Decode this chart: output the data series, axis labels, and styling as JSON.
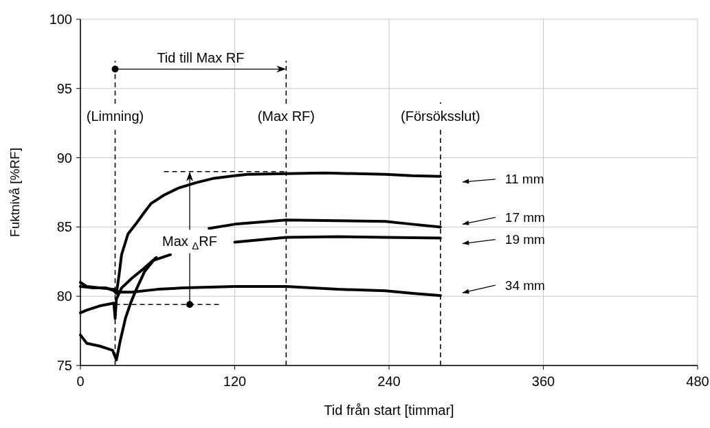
{
  "chart_data": {
    "type": "line",
    "xlabel": "Tid från start [timmar]",
    "ylabel": "Fuktnivå [%RF]",
    "xlim": [
      0,
      480
    ],
    "xticks": [
      0,
      120,
      240,
      360,
      480
    ],
    "ylim": [
      75,
      100
    ],
    "yticks": [
      75,
      80,
      85,
      90,
      95,
      100
    ],
    "grid": true,
    "legend": "right",
    "marker": "none",
    "line_style": "solid",
    "series": [
      {
        "name": "11 mm",
        "color": "#000000",
        "x": [
          0,
          10,
          20,
          26,
          28,
          30,
          32,
          37,
          43,
          50,
          55,
          65,
          76,
          90,
          103,
          120,
          130,
          160,
          190,
          237,
          258,
          280
        ],
        "values": [
          80.7,
          80.6,
          80.6,
          80.4,
          80.2,
          81.5,
          83.0,
          84.5,
          85.2,
          86.1,
          86.7,
          87.3,
          87.8,
          88.2,
          88.5,
          88.7,
          88.8,
          88.85,
          88.9,
          88.8,
          88.7,
          88.65
        ]
      },
      {
        "name": "17 mm",
        "color": "#000000",
        "x": [
          0,
          5,
          15,
          26,
          27,
          28,
          32,
          40,
          48,
          59,
          70,
          85,
          100,
          120,
          160,
          200,
          237,
          258,
          280
        ],
        "values": [
          78.8,
          79.0,
          79.3,
          79.5,
          78.4,
          79.8,
          80.6,
          81.3,
          81.9,
          82.8,
          null,
          null,
          84.9,
          85.2,
          85.5,
          85.45,
          85.4,
          85.2,
          85.0
        ]
      },
      {
        "name": "19 mm",
        "color": "#000000",
        "x": [
          0,
          5,
          15,
          25,
          28,
          31,
          35,
          39,
          43,
          50,
          57,
          70,
          90,
          120,
          160,
          200,
          237,
          280
        ],
        "values": [
          77.2,
          76.6,
          76.4,
          76.1,
          75.4,
          76.8,
          78.4,
          79.5,
          80.4,
          81.8,
          82.6,
          83.0,
          null,
          83.9,
          84.25,
          84.3,
          84.25,
          84.2
        ]
      },
      {
        "name": "34 mm",
        "color": "#000000",
        "x": [
          0,
          5,
          15,
          26,
          30,
          40,
          60,
          80,
          100,
          120,
          160,
          200,
          237,
          260,
          280
        ],
        "values": [
          81.0,
          80.7,
          80.6,
          80.5,
          80.3,
          80.3,
          80.5,
          80.6,
          80.65,
          80.7,
          80.7,
          80.5,
          80.4,
          80.2,
          80.05
        ]
      }
    ],
    "ref_lines": [
      {
        "axis": "x",
        "value": 27,
        "label": "(Limning)",
        "line_style": "dashed",
        "color": "#000000"
      },
      {
        "axis": "x",
        "value": 160,
        "label": "(Max RF)",
        "line_style": "dashed",
        "color": "#000000"
      },
      {
        "axis": "x",
        "value": 280,
        "label": "(Försöksslut)",
        "line_style": "dashed",
        "color": "#000000"
      }
    ],
    "annotations": [
      "Tid till Max RF",
      "Max $_{Δ}$RF"
    ]
  }
}
